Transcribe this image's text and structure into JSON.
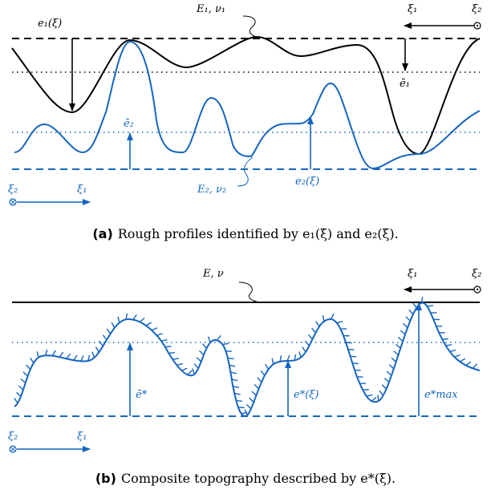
{
  "colors": {
    "black": "#000000",
    "blue": "#1565c0"
  },
  "panel_a": {
    "label_e1": "e₁(ξ)",
    "label_E1": "E₁,  ν₁",
    "label_e1bar": "ē₁",
    "label_e2bar": "ē₂",
    "label_E2": "E₂,  ν₂",
    "label_e2": "e₂(ξ)",
    "axis_xi1_top": "ξ₁",
    "axis_xi2_top": "ξ₂",
    "axis_xi2_bottom": "ξ₂",
    "axis_xi1_bottom": "ξ₁",
    "caption_tag": "(a)",
    "caption_text": "Rough profiles identified by e₁(ξ) and e₂(ξ)."
  },
  "panel_b": {
    "label_E": "E,  ν",
    "label_ebar": "ē*",
    "label_estar": "e*(ξ)",
    "label_emax": "e*max",
    "axis_xi1_top": "ξ₁",
    "axis_xi2_top": "ξ₂",
    "axis_xi2_bottom": "ξ₂",
    "axis_xi1_bottom": "ξ₁",
    "caption_tag": "(b)",
    "caption_text": "Composite topography described by e*(ξ)."
  }
}
